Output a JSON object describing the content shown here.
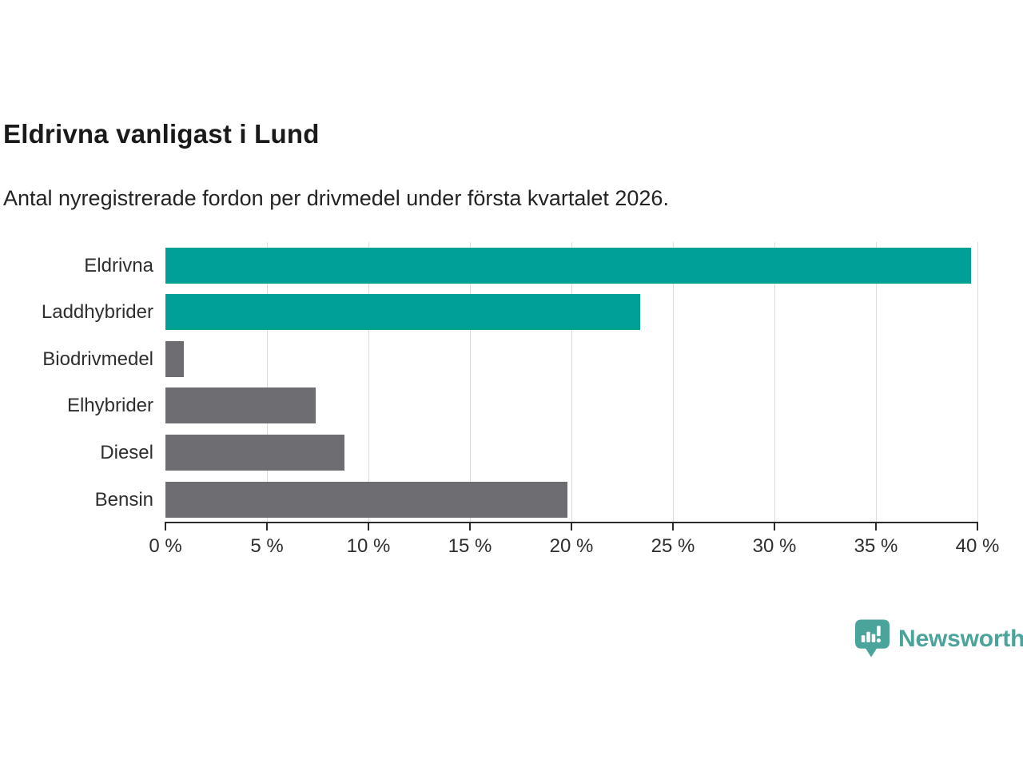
{
  "chart_data": {
    "type": "bar",
    "orientation": "horizontal",
    "title": "Eldrivna vanligast i Lund",
    "subtitle": "Antal nyregistrerade fordon per drivmedel under första kvartalet 2026.",
    "categories": [
      "Eldrivna",
      "Laddhybrider",
      "Biodrivmedel",
      "Elhybrider",
      "Diesel",
      "Bensin"
    ],
    "values": [
      39.7,
      23.4,
      0.9,
      7.4,
      8.8,
      19.8
    ],
    "unit": "%",
    "bar_colors": [
      "#00A096",
      "#00A096",
      "#6D6D72",
      "#6D6D72",
      "#6D6D72",
      "#6D6D72"
    ],
    "highlight_color": "#00A096",
    "default_color": "#6D6D72",
    "xlim": [
      0,
      40
    ],
    "x_ticks": [
      0,
      5,
      10,
      15,
      20,
      25,
      30,
      35,
      40
    ],
    "x_tick_labels": [
      "0 %",
      "5 %",
      "10 %",
      "15 %",
      "20 %",
      "25 %",
      "30 %",
      "35 %",
      "40 %"
    ],
    "grid": true,
    "gridline_color": "#dcdcdc",
    "axis_color": "#2b2b2b",
    "legend": "none"
  },
  "branding": {
    "logo_text": "Newsworthy",
    "logo_color": "#4BA49C",
    "logo_icon": "newsworthy-speech-bubble-barchart-icon"
  }
}
